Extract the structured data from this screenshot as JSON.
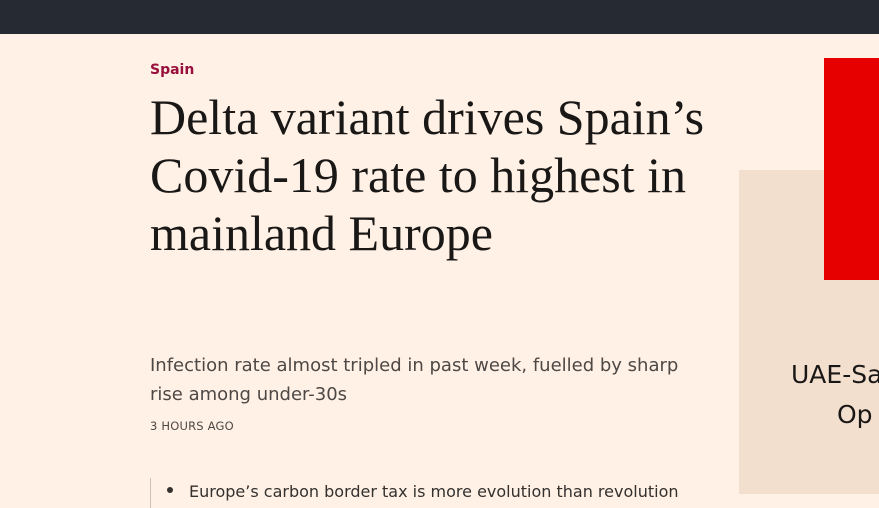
{
  "article": {
    "topic": "Spain",
    "headline": "Delta variant drives Spain’s Covid-19 rate to highest in mainland Europe",
    "standfirst": "Infection rate almost tripled in past week, fuelled by sharp rise among under-30s",
    "timestamp": "3 HOURS AGO"
  },
  "related": {
    "items": [
      {
        "title": "Europe’s carbon border tax is more evolution than revolution"
      }
    ]
  },
  "advert": {
    "line1": "UAE-Sa",
    "line2": "Op"
  },
  "colors": {
    "topbar": "#262a33",
    "background": "#fff1e5",
    "topic": "#990f3d",
    "ad_red": "#e60000",
    "ad_panel": "#f2dfce"
  }
}
